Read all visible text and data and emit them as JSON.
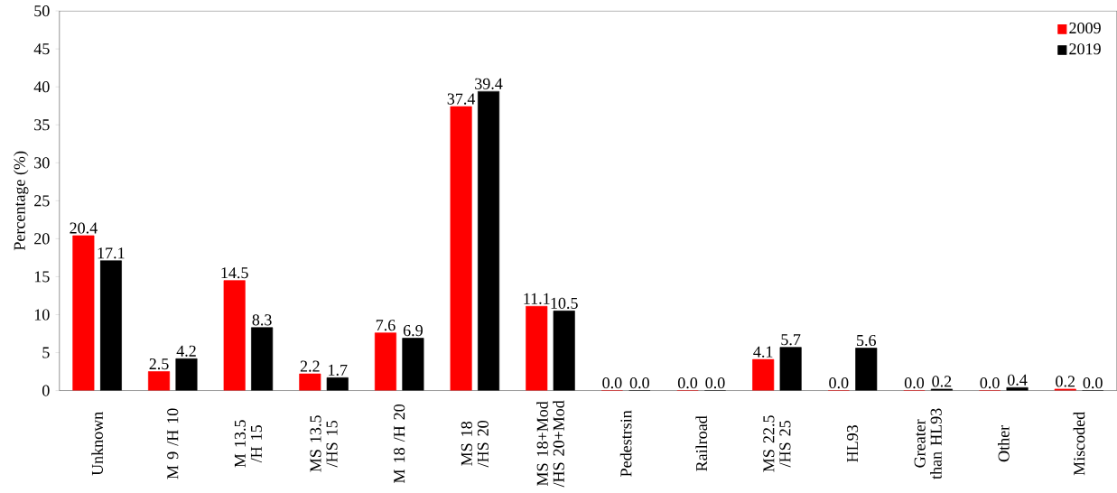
{
  "chart_data": {
    "type": "bar",
    "ylabel": "Percentage (%)",
    "categories": [
      "Unknown",
      "M 9 /H 10",
      "M 13.5 /H 15",
      "MS 13.5 /HS 15",
      "M 18 /H 20",
      "MS 18 /HS 20",
      "MS 18+Mod /HS 20+Mod",
      "Pedestrsin",
      "Railroad",
      "MS 22.5 /HS 25",
      "HL93",
      "Greater than HL93",
      "Other",
      "Miscoded"
    ],
    "series": [
      {
        "name": "2009",
        "color": "#ff0000",
        "values": [
          20.4,
          2.5,
          14.5,
          2.2,
          7.6,
          37.4,
          11.1,
          0.0,
          0.0,
          4.1,
          0.0,
          0.0,
          0.0,
          0.2
        ],
        "value_labels": [
          "20.4",
          "2.5",
          "14.5",
          "2.2",
          "7.6",
          "37.4",
          "11.1",
          "0.0",
          "0.0",
          "4.1",
          "0.0",
          "0.0",
          "0.0",
          "0.2"
        ]
      },
      {
        "name": "2019",
        "color": "#000000",
        "values": [
          17.1,
          4.2,
          8.3,
          1.7,
          6.9,
          39.4,
          10.5,
          0.0,
          0.0,
          5.7,
          5.6,
          0.2,
          0.4,
          0.0
        ],
        "value_labels": [
          "17.1",
          "4.2",
          "8.3",
          "1.7",
          "6.9",
          "39.4",
          "10.5",
          "0.0",
          "0.0",
          "5.7",
          "5.6",
          "0.2",
          "0.4",
          "0.0"
        ]
      }
    ],
    "ylim": [
      0,
      50
    ],
    "yticks": [
      0,
      5,
      10,
      15,
      20,
      25,
      30,
      35,
      40,
      45,
      50
    ],
    "grid": false,
    "legend": "top right"
  }
}
